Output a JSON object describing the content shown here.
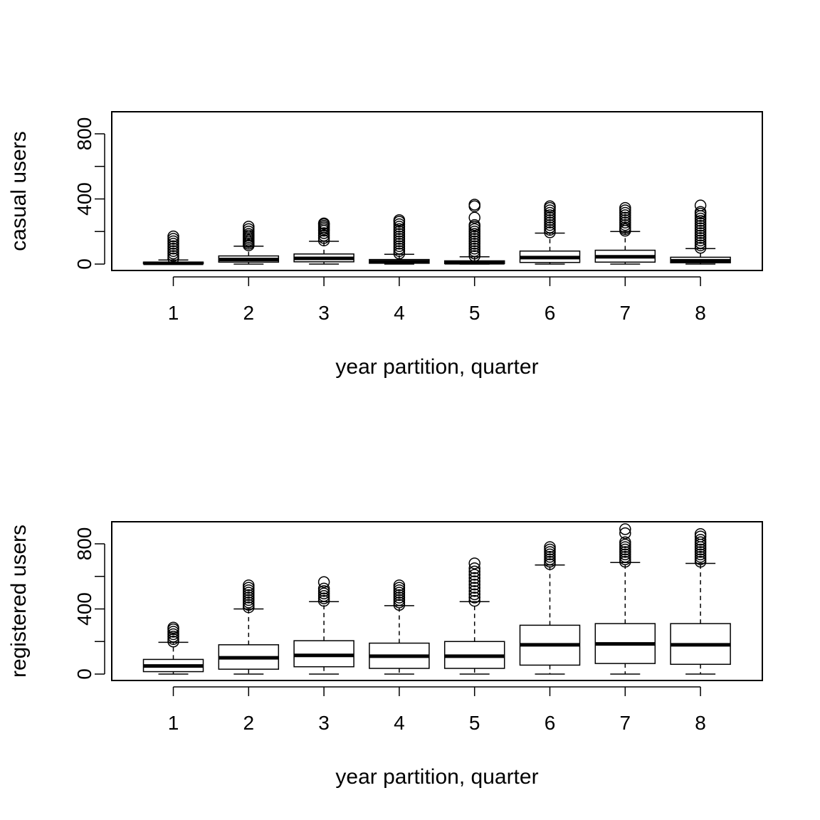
{
  "chart_data": [
    {
      "type": "boxplot",
      "xlabel": "year partition, quarter",
      "ylabel": "casual users",
      "ylim": [
        0,
        950
      ],
      "yticks": [
        0,
        400,
        800
      ],
      "ylabeled_ticks": [
        "0",
        "400",
        "800"
      ],
      "yminor_ticks": [
        200,
        600
      ],
      "categories": [
        "1",
        "2",
        "3",
        "4",
        "5",
        "6",
        "7",
        "8"
      ],
      "boxes": [
        {
          "category": "1",
          "whisker_low": 0,
          "q1": 2,
          "median": 5,
          "q3": 12,
          "whisker_high": 25,
          "outliers": [
            35,
            50,
            65,
            80,
            95,
            110,
            125,
            140,
            155,
            170
          ]
        },
        {
          "category": "2",
          "whisker_low": 0,
          "q1": 12,
          "median": 28,
          "q3": 50,
          "whisker_high": 110,
          "outliers": [
            115,
            125,
            135,
            145,
            155,
            165,
            175,
            185,
            200,
            215,
            230
          ]
        },
        {
          "category": "3",
          "whisker_low": 0,
          "q1": 14,
          "median": 35,
          "q3": 62,
          "whisker_high": 140,
          "outliers": [
            145,
            160,
            175,
            190,
            205,
            215,
            225,
            235,
            245,
            250
          ]
        },
        {
          "category": "4",
          "whisker_low": 0,
          "q1": 5,
          "median": 14,
          "q3": 28,
          "whisker_high": 60,
          "outliers": [
            65,
            80,
            95,
            110,
            125,
            140,
            155,
            170,
            185,
            200,
            215,
            230,
            245,
            260,
            270
          ]
        },
        {
          "category": "5",
          "whisker_low": 0,
          "q1": 3,
          "median": 8,
          "q3": 20,
          "whisker_high": 45,
          "outliers": [
            50,
            65,
            80,
            95,
            110,
            125,
            140,
            155,
            170,
            185,
            200,
            215,
            230,
            240,
            285,
            355,
            365
          ]
        },
        {
          "category": "6",
          "whisker_low": 0,
          "q1": 10,
          "median": 40,
          "q3": 80,
          "whisker_high": 190,
          "outliers": [
            195,
            210,
            225,
            240,
            255,
            270,
            285,
            300,
            315,
            330,
            345,
            355
          ]
        },
        {
          "category": "7",
          "whisker_low": 0,
          "q1": 12,
          "median": 45,
          "q3": 85,
          "whisker_high": 200,
          "outliers": [
            205,
            215,
            225,
            240,
            255,
            270,
            285,
            300,
            315,
            330,
            345
          ]
        },
        {
          "category": "8",
          "whisker_low": 0,
          "q1": 8,
          "median": 20,
          "q3": 42,
          "whisker_high": 95,
          "outliers": [
            100,
            115,
            130,
            145,
            160,
            175,
            190,
            205,
            220,
            235,
            250,
            265,
            280,
            295,
            310,
            320,
            360
          ]
        }
      ]
    },
    {
      "type": "boxplot",
      "xlabel": "year partition, quarter",
      "ylabel": "registered users",
      "ylim": [
        0,
        950
      ],
      "yticks": [
        0,
        400,
        800
      ],
      "ylabeled_ticks": [
        "0",
        "400",
        "800"
      ],
      "yminor_ticks": [
        200,
        600
      ],
      "categories": [
        "1",
        "2",
        "3",
        "4",
        "5",
        "6",
        "7",
        "8"
      ],
      "boxes": [
        {
          "category": "1",
          "whisker_low": 0,
          "q1": 15,
          "median": 50,
          "q3": 90,
          "whisker_high": 195,
          "outliers": [
            200,
            215,
            230,
            245,
            260,
            275,
            285
          ]
        },
        {
          "category": "2",
          "whisker_low": 0,
          "q1": 30,
          "median": 100,
          "q3": 180,
          "whisker_high": 400,
          "outliers": [
            410,
            425,
            440,
            455,
            470,
            485,
            500,
            515,
            530,
            545
          ]
        },
        {
          "category": "3",
          "whisker_low": 0,
          "q1": 45,
          "median": 115,
          "q3": 205,
          "whisker_high": 445,
          "outliers": [
            450,
            465,
            480,
            495,
            510,
            525,
            565
          ]
        },
        {
          "category": "4",
          "whisker_low": 0,
          "q1": 35,
          "median": 110,
          "q3": 190,
          "whisker_high": 420,
          "outliers": [
            425,
            440,
            455,
            470,
            485,
            500,
            515,
            530,
            545
          ]
        },
        {
          "category": "5",
          "whisker_low": 0,
          "q1": 35,
          "median": 110,
          "q3": 200,
          "whisker_high": 445,
          "outliers": [
            450,
            470,
            490,
            510,
            530,
            550,
            570,
            590,
            610,
            630,
            650,
            680
          ]
        },
        {
          "category": "6",
          "whisker_low": 0,
          "q1": 55,
          "median": 180,
          "q3": 300,
          "whisker_high": 670,
          "outliers": [
            675,
            690,
            705,
            720,
            735,
            750,
            765,
            780
          ]
        },
        {
          "category": "7",
          "whisker_low": 0,
          "q1": 65,
          "median": 185,
          "q3": 310,
          "whisker_high": 685,
          "outliers": [
            690,
            705,
            720,
            735,
            750,
            765,
            780,
            795,
            810,
            865,
            890
          ]
        },
        {
          "category": "8",
          "whisker_low": 0,
          "q1": 60,
          "median": 180,
          "q3": 310,
          "whisker_high": 680,
          "outliers": [
            690,
            705,
            720,
            735,
            750,
            765,
            780,
            795,
            810,
            825,
            845,
            860
          ]
        }
      ]
    }
  ]
}
